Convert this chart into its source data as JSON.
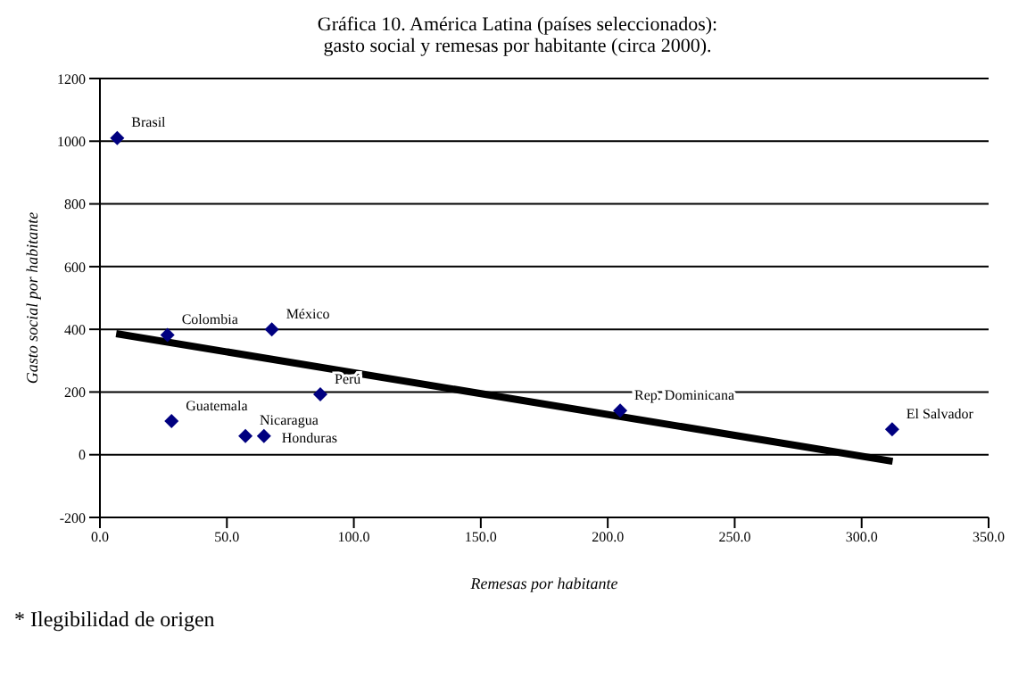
{
  "chart_data": {
    "type": "scatter",
    "title": "Gráfica 10. América Latina (países seleccionados):",
    "subtitle": "gasto social y remesas por habitante (circa 2000).",
    "xlabel": "Remesas por habitante",
    "ylabel": "Gasto social por habitante",
    "xlim": [
      0,
      350
    ],
    "xticks": [
      {
        "value": 0,
        "label": "0.0"
      },
      {
        "value": 50,
        "label": "50.0"
      },
      {
        "value": 100,
        "label": "100.0"
      },
      {
        "value": 150,
        "label": "150.0"
      },
      {
        "value": 200,
        "label": "200.0"
      },
      {
        "value": 250,
        "label": "250.0"
      },
      {
        "value": 300,
        "label": "300.0"
      },
      {
        "value": 350,
        "label": "350.0"
      }
    ],
    "ylim": [
      -200,
      1200
    ],
    "yticks": [
      -200,
      0,
      200,
      400,
      600,
      800,
      1000,
      1200
    ],
    "grid": "y",
    "series": [
      {
        "type": "scatter",
        "marker": "diamond",
        "color": "#000080",
        "x": [
          6.8,
          26.6,
          67.7,
          86.8,
          28.2,
          57.3,
          64.6,
          204.9,
          312
        ],
        "values": [
          1010,
          382,
          400,
          193,
          107,
          60,
          60,
          141,
          81
        ]
      },
      {
        "type": "line",
        "color": "#000000",
        "x": [
          6.4,
          312.2
        ],
        "values": [
          386,
          -21
        ]
      }
    ],
    "annotations": [
      {
        "text": "Brasil",
        "x": 6.8,
        "y": 1010
      },
      {
        "text": "Colombia",
        "x": 26.6,
        "y": 382
      },
      {
        "text": "México",
        "x": 67.7,
        "y": 400
      },
      {
        "text": "Perú",
        "x": 86.8,
        "y": 193
      },
      {
        "text": "Guatemala",
        "x": 28.2,
        "y": 107
      },
      {
        "text": "Nicaragua",
        "x": 57.3,
        "y": 60
      },
      {
        "text": "Honduras",
        "x": 64.6,
        "y": 60
      },
      {
        "text": "Rep. Dominicana",
        "x": 204.9,
        "y": 141
      },
      {
        "text": "El Salvador",
        "x": 312,
        "y": 81
      },
      "* Ilegibilidad de origen"
    ]
  }
}
